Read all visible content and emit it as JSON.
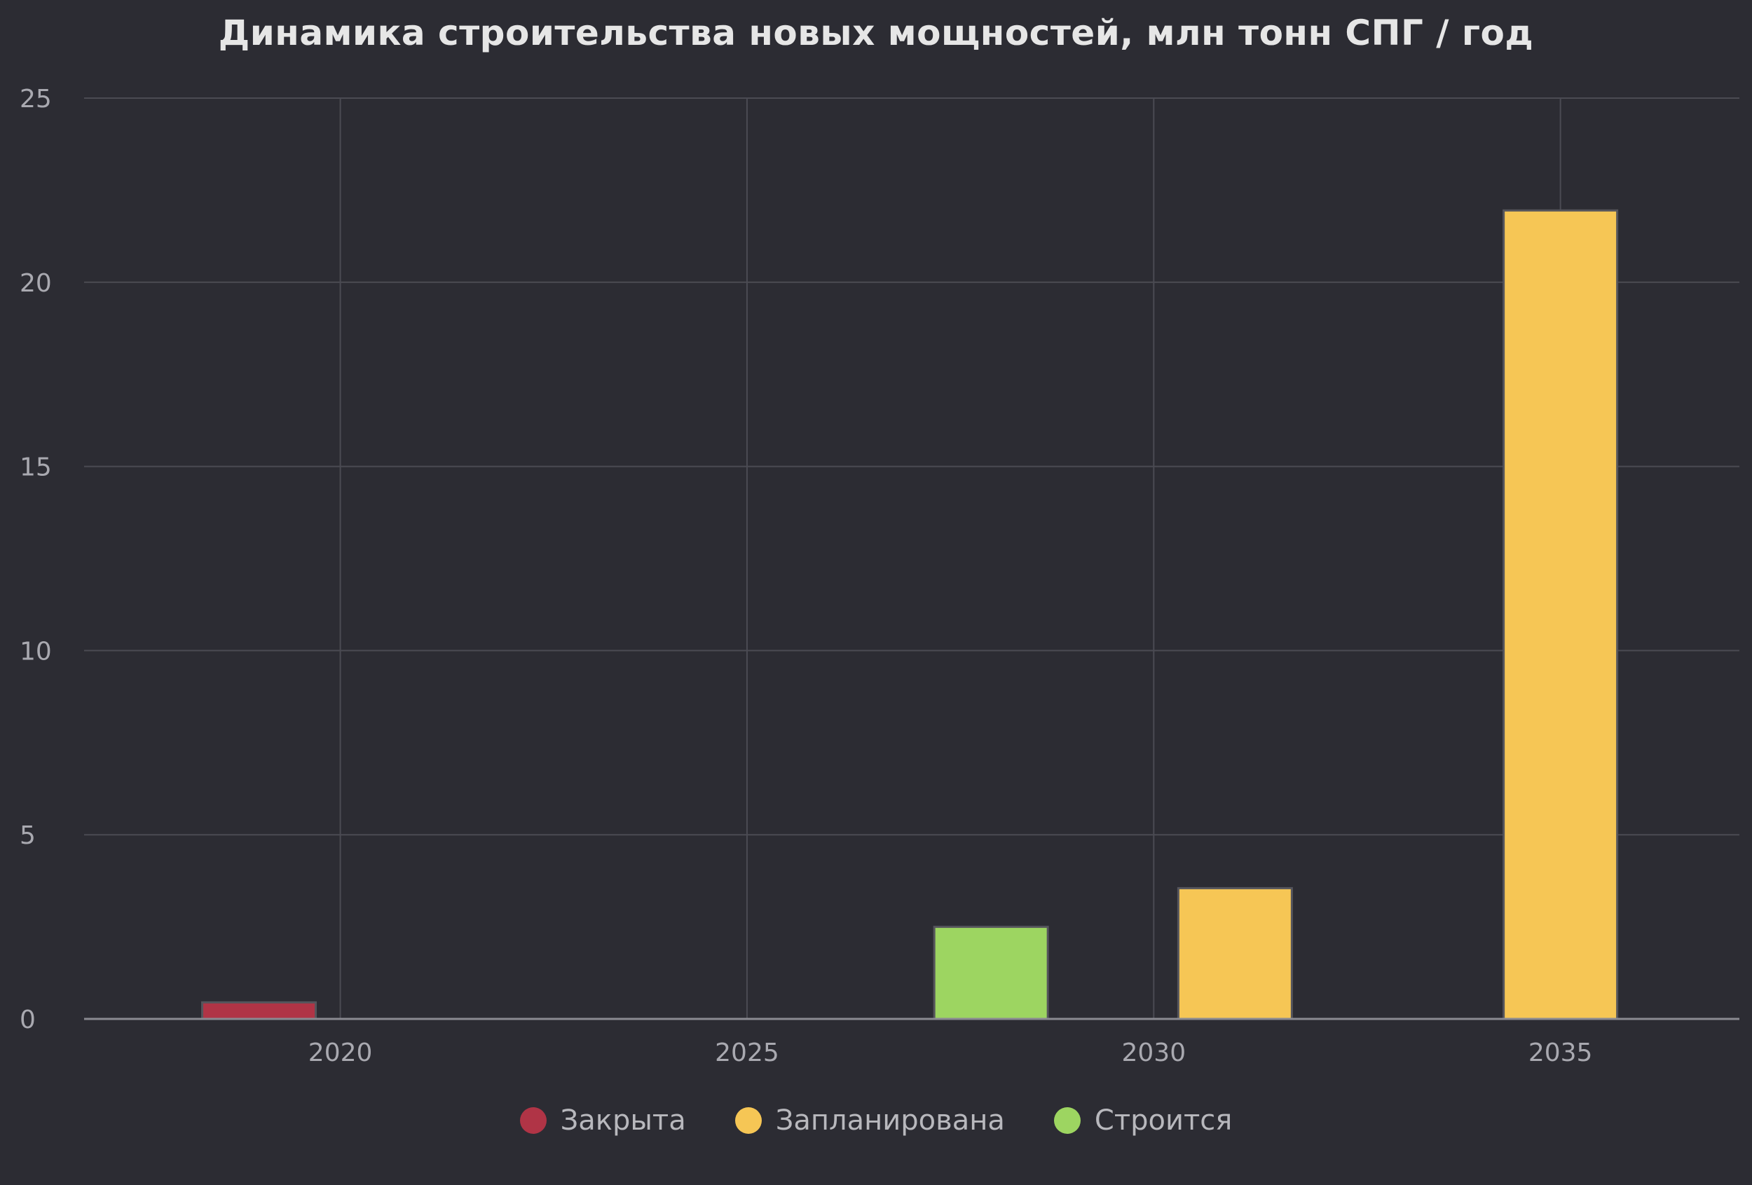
{
  "chart_data": {
    "type": "bar",
    "title": "Динамика строительства новых мощностей, млн тонн СПГ / год",
    "xlabel": "",
    "ylabel": "",
    "x_ticks": [
      "2020",
      "2025",
      "2030",
      "2035"
    ],
    "x_tick_values": [
      2020,
      2025,
      2030,
      2035
    ],
    "xlim": [
      2016.85,
      2037.2
    ],
    "y_ticks": [
      "0",
      "5",
      "10",
      "15",
      "20",
      "25"
    ],
    "y_tick_values": [
      0,
      5,
      10,
      15,
      20,
      25
    ],
    "ylim": [
      0,
      25
    ],
    "grid": true,
    "legend_position": "bottom-center",
    "series": [
      {
        "name": "Закрыта",
        "color": "#b03446",
        "points": [
          {
            "x": 2019,
            "y": 0.45
          }
        ]
      },
      {
        "name": "Запланирована",
        "color": "#f6c655",
        "points": [
          {
            "x": 2031,
            "y": 3.55
          },
          {
            "x": 2035,
            "y": 21.95
          }
        ]
      },
      {
        "name": "Строится",
        "color": "#9dd561",
        "points": [
          {
            "x": 2028,
            "y": 2.5
          }
        ]
      }
    ]
  }
}
